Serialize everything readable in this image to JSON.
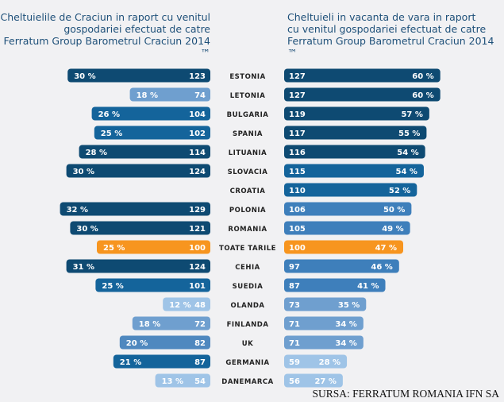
{
  "chart_data": [
    {
      "type": "bar",
      "orientation": "horizontal",
      "direction": "leftward",
      "title": [
        "Cheltuielile de Craciun in raport cu venitul",
        "gospodariei efectuat de catre",
        "Ferratum Group Barometrul Craciun 2014 ™"
      ],
      "categories": [
        "ESTONIA",
        "LETONIA",
        "BULGARIA",
        "SPANIA",
        "LITUANIA",
        "SLOVACIA",
        "CROATIA",
        "POLONIA",
        "ROMANIA",
        "TOATE TARILE",
        "CEHIA",
        "SUEDIA",
        "OLANDA",
        "FINLANDA",
        "UK",
        "GERMANIA",
        "DANEMARCA"
      ],
      "index": [
        123,
        74,
        104,
        102,
        114,
        124,
        null,
        129,
        121,
        100,
        124,
        101,
        48,
        72,
        82,
        87,
        54
      ],
      "percent": [
        "30 %",
        "18 %",
        "26 %",
        "25 %",
        "28 %",
        "30 %",
        null,
        "32 %",
        "30 %",
        "25 %",
        "31 %",
        "25 %",
        "12 %",
        "18 %",
        "20 %",
        "21 %",
        "13 %"
      ],
      "colors": [
        "#0e4a72",
        "#6f9fcf",
        "#14649b",
        "#14649b",
        "#0e4a72",
        "#0e4a72",
        null,
        "#0e4a72",
        "#0e4a72",
        "#f7951f",
        "#0e4a72",
        "#14649b",
        "#9fc4e7",
        "#6f9fcf",
        "#4f88bf",
        "#14649b",
        "#9fc4e7"
      ]
    },
    {
      "type": "bar",
      "orientation": "horizontal",
      "direction": "rightward",
      "title": [
        "Cheltuieli in vacanta de vara in raport",
        "cu venitul gospodariei efectuat de catre",
        "Ferratum Group Barometrul Craciun 2014 ™"
      ],
      "categories": [
        "ESTONIA",
        "LETONIA",
        "BULGARIA",
        "SPANIA",
        "LITUANIA",
        "SLOVACIA",
        "CROATIA",
        "POLONIA",
        "ROMANIA",
        "TOATE TARILE",
        "CEHIA",
        "SUEDIA",
        "OLANDA",
        "FINLANDA",
        "UK",
        "GERMANIA",
        "DANEMARCA"
      ],
      "index": [
        127,
        127,
        119,
        117,
        116,
        115,
        110,
        106,
        105,
        100,
        97,
        87,
        73,
        71,
        71,
        59,
        56
      ],
      "percent": [
        "60 %",
        "60 %",
        "57 %",
        "55 %",
        "54 %",
        "54 %",
        "52 %",
        "50 %",
        "49 %",
        "47 %",
        "46 %",
        "41 %",
        "35 %",
        "34 %",
        "34 %",
        "28 %",
        "27 %"
      ],
      "colors": [
        "#0e4a72",
        "#0e4a72",
        "#0e4a72",
        "#0e4a72",
        "#0e4a72",
        "#14649b",
        "#14649b",
        "#3e7fbb",
        "#3e7fbb",
        "#f7951f",
        "#3e7fbb",
        "#3e7fbb",
        "#6f9fcf",
        "#6f9fcf",
        "#6f9fcf",
        "#9fc4e7",
        "#9fc4e7"
      ]
    }
  ],
  "source": "SURSA: FERRATUM ROMANIA IFN SA"
}
